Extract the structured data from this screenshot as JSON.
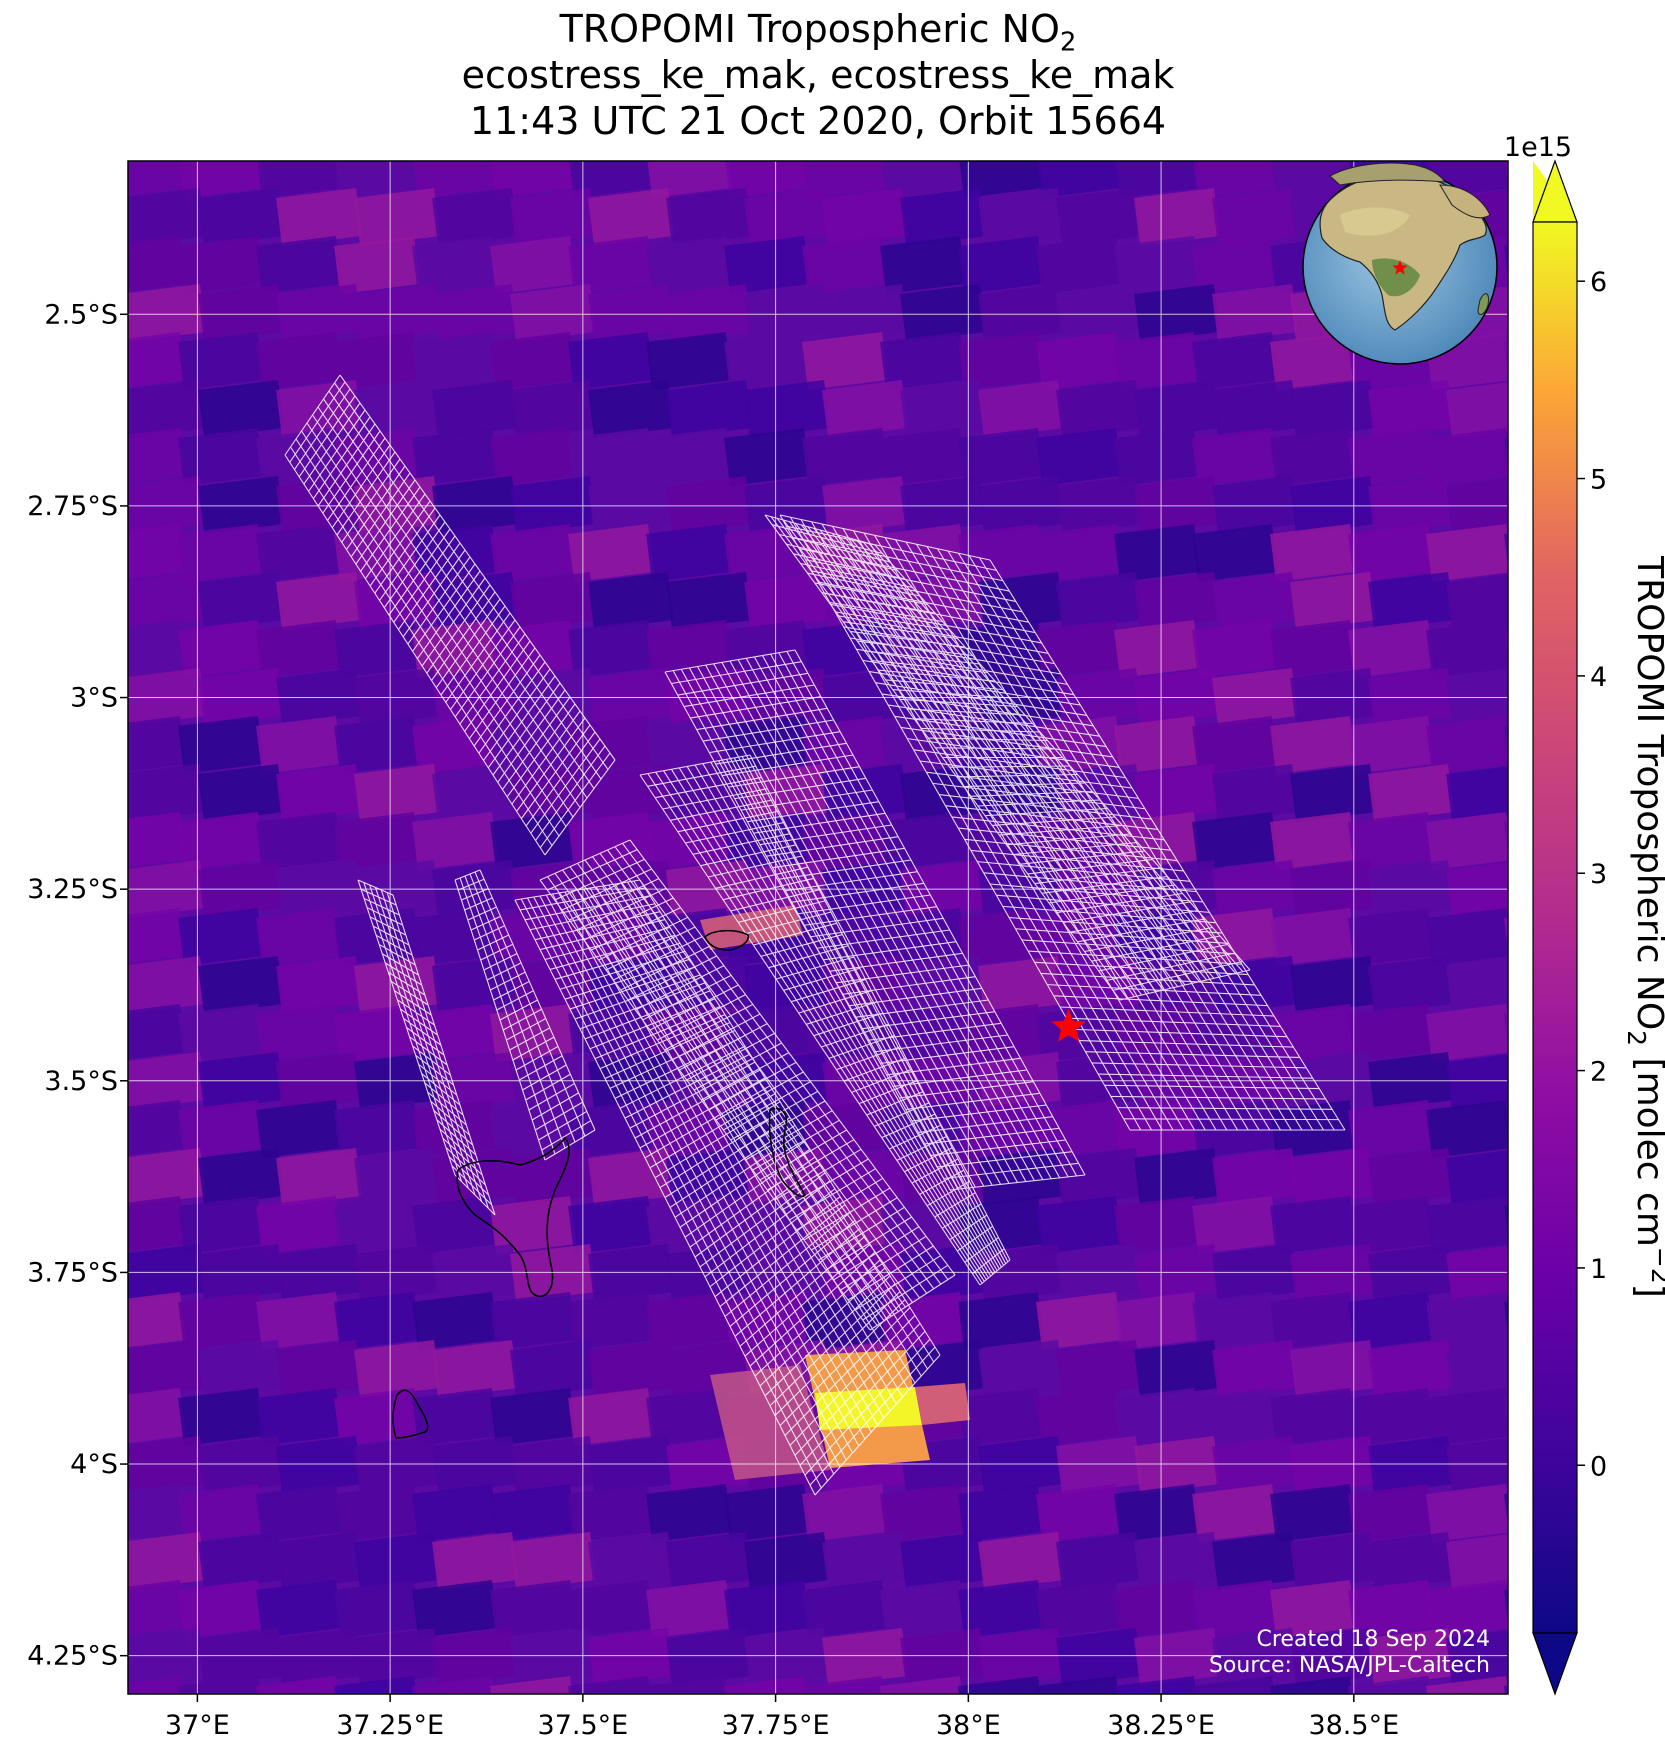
{
  "title": {
    "line1_main": "TROPOMI Tropospheric NO",
    "line1_sub": "2",
    "line2": "ecostress_ke_mak, ecostress_ke_mak",
    "line3": "11:43 UTC 21 Oct 2020, Orbit 15664"
  },
  "map": {
    "x_ticks": [
      {
        "value": 37.0,
        "label": "37°E"
      },
      {
        "value": 37.25,
        "label": "37.25°E"
      },
      {
        "value": 37.5,
        "label": "37.5°E"
      },
      {
        "value": 37.75,
        "label": "37.75°E"
      },
      {
        "value": 38.0,
        "label": "38°E"
      },
      {
        "value": 38.25,
        "label": "38.25°E"
      },
      {
        "value": 38.5,
        "label": "38.5°E"
      }
    ],
    "y_ticks": [
      {
        "value": -2.5,
        "label": "2.5°S"
      },
      {
        "value": -2.75,
        "label": "2.75°S"
      },
      {
        "value": -3.0,
        "label": "3°S"
      },
      {
        "value": -3.25,
        "label": "3.25°S"
      },
      {
        "value": -3.5,
        "label": "3.5°S"
      },
      {
        "value": -3.75,
        "label": "3.75°S"
      },
      {
        "value": -4.0,
        "label": "4°S"
      },
      {
        "value": -4.25,
        "label": "4.25°S"
      }
    ],
    "lon_range": [
      36.91,
      38.7
    ],
    "lat_range": [
      -4.3,
      -2.3
    ],
    "gridlines": true,
    "target_marker": {
      "lon": 38.13,
      "lat": -3.43,
      "symbol": "star",
      "color": "#ff0000"
    },
    "credit_line1": "Created 18 Sep 2024",
    "credit_line2": "Source: NASA/JPL-Caltech",
    "inset_globe": "globe centered on Africa with red star marking the site"
  },
  "colorbar": {
    "colormap": "plasma",
    "range": [
      -0.85,
      6.3
    ],
    "multiplier": "1e15",
    "ticks": [
      {
        "value": 0,
        "label": "0"
      },
      {
        "value": 1,
        "label": "1"
      },
      {
        "value": 2,
        "label": "2"
      },
      {
        "value": 3,
        "label": "3"
      },
      {
        "value": 4,
        "label": "4"
      },
      {
        "value": 5,
        "label": "5"
      },
      {
        "value": 6,
        "label": "6"
      }
    ],
    "label_main": "TROPOMI Tropospheric NO",
    "label_sub": "2",
    "label_units": " [molec cm",
    "label_exp": "−2",
    "label_close": "]",
    "extend": "both"
  },
  "colors": {
    "background_purple": "#5b0aa3",
    "hotspot_yellow": "#f3f528",
    "hotspot_orange": "#f39a4a",
    "hotspot_pink": "#d15e78",
    "footprint_outline": "#ffffff",
    "target_star": "#ff0000"
  }
}
